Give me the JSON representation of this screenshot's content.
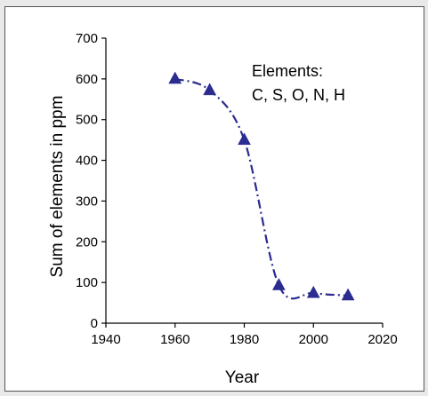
{
  "chart_data": {
    "type": "line",
    "title": "",
    "xlabel": "Year",
    "ylabel": "Sum of elements in ppm",
    "xlim": [
      1940,
      2020
    ],
    "ylim": [
      0,
      700
    ],
    "xticks": [
      1940,
      1960,
      1980,
      2000,
      2020
    ],
    "yticks": [
      0,
      100,
      200,
      300,
      400,
      500,
      600,
      700
    ],
    "grid": false,
    "legend": "none",
    "marker": "triangle",
    "line_style": "dash-dot",
    "color": "#2b2c8f",
    "series": [
      {
        "x": [
          1960,
          1970,
          1980,
          1990,
          2000,
          2010
        ],
        "values": [
          600,
          572,
          450,
          93,
          74,
          68
        ]
      }
    ],
    "annotations": [
      {
        "line1": "Elements:",
        "line2": "C, S, O, N, H"
      }
    ]
  }
}
